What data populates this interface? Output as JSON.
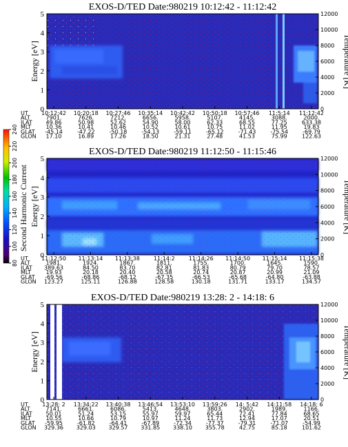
{
  "chart_data": [
    {
      "type": "heatmap",
      "title": "EXOS-D/TED   Date:980219  10:12:42 - 11:12:42",
      "ylabel": "Energy [eV]",
      "y2label": "Temperature [K]",
      "ylim": [
        0,
        5
      ],
      "y2lim": [
        0,
        12000
      ],
      "yticks": [
        "0",
        "1",
        "2",
        "3",
        "4",
        "5"
      ],
      "y2ticks": [
        "0",
        "2000",
        "4000",
        "6000",
        "8000",
        "10000",
        "12000"
      ],
      "ephemeris": {
        "rows": [
          "UT",
          "ALT",
          "ILAT",
          "MLT",
          "GLAT",
          "GLON"
        ],
        "columns": [
          [
            "10:12:42",
            "7901.",
            "49.86",
            "10.36",
            "-45.14",
            "17.10"
          ],
          [
            "10:20:18",
            "7626.",
            "50.98",
            "10.41",
            "-47.22",
            "16.89"
          ],
          [
            "10:27:46",
            "7212.",
            "52.62",
            "10.46",
            "-50.18",
            "17.26"
          ],
          [
            "10:35:14",
            "6656.",
            "54.90",
            "10.52",
            "-54.13",
            "18.50"
          ],
          [
            "10:42:42",
            "5958.",
            "58.00",
            "10.61",
            "-59.11",
            "21.31"
          ],
          [
            "10:50:18",
            "5107.",
            "62.33",
            "10.75",
            "-65.12",
            "27.48"
          ],
          [
            "10:57:46",
            "4145.",
            "68.55",
            "11.02",
            "-71.43",
            "41.53"
          ],
          [
            "11:5:14",
            "3088.",
            "77.25",
            "11.95",
            "-75.54",
            "75.99"
          ],
          [
            "11:12:42",
            "2000.",
            "633.38",
            "19.83",
            "-69.79",
            "122.63"
          ]
        ]
      }
    },
    {
      "type": "heatmap",
      "title": "EXOS-D/TED   Date:980219  11:12:50 - 11:15:46",
      "ylabel": "Energy [eV]",
      "y2label": "Temperature [K]",
      "colorbar_label": "Second Harmonic Current",
      "colorbar_ticks": [
        "80",
        "100",
        "120",
        "140",
        "160",
        "180",
        "200",
        "220",
        "240"
      ],
      "ylim": [
        0,
        5
      ],
      "y2lim": [
        0,
        12000
      ],
      "yticks": [
        "0",
        "1",
        "2",
        "3",
        "4",
        "5"
      ],
      "y2ticks": [
        "0",
        "2000",
        "4000",
        "6000",
        "8000",
        "10000",
        "12000"
      ],
      "ephemeris": {
        "rows": [
          "UT",
          "ALT",
          "ILAT",
          "MLT",
          "GLAT",
          "GLON"
        ],
        "columns": [
          [
            "11:12:50",
            "1981.",
            "389.63",
            "19.93",
            "-69.56",
            "123.27"
          ],
          [
            "11:13:14",
            "1924.",
            "84.50",
            "20.18",
            "-68.86",
            "125.11"
          ],
          [
            "11:13:38",
            "1867.",
            "83.70",
            "20.40",
            "-68.12",
            "126.88"
          ],
          [
            "11:14:2",
            "1811.",
            "82.81",
            "20.58",
            "-67.35",
            "128.58"
          ],
          [
            "11:14:26",
            "1755.",
            "81.83",
            "20.74",
            "-66.53",
            "130.18"
          ],
          [
            "11:14:50",
            "1700.",
            "80.79",
            "20.87",
            "-65.68",
            "131.71"
          ],
          [
            "11:15:14",
            "1645.",
            "79.70",
            "20.99",
            "-64.80",
            "133.17"
          ],
          [
            "11:15:38",
            "1590.",
            "78.57",
            "21.09",
            "-63.88",
            "134.57"
          ]
        ]
      }
    },
    {
      "type": "heatmap",
      "title": "EXOS-D/TED   Date:980219  13:28: 2 - 14:18: 6",
      "ylabel": "Energy [eV]",
      "y2label": "Temperature [K]",
      "ylim": [
        0,
        5
      ],
      "y2lim": [
        0,
        12000
      ],
      "yticks": [
        "0",
        "1",
        "2",
        "3",
        "4",
        "5"
      ],
      "y2ticks": [
        "0",
        "2000",
        "4000",
        "6000",
        "8000",
        "10000",
        "12000"
      ],
      "ephemeris": {
        "rows": [
          "UT",
          "ALT",
          "ILAT",
          "MLT",
          "GLAT",
          "GLON"
        ],
        "columns": [
          [
            "13:28: 2",
            "7141.",
            "50.01",
            "10.55",
            "-59.95",
            "329.36"
          ],
          [
            "13:34:22",
            "6661.",
            "51.24",
            "10.66",
            "-61.82",
            "329.03"
          ],
          [
            "13:40:38",
            "6086.",
            "53.15",
            "10.79",
            "-64.41",
            "329.57"
          ],
          [
            "13:46:54",
            "5413.",
            "55.97",
            "10.97",
            "-67.89",
            "331.85"
          ],
          [
            "13:53:10",
            "4648.",
            "59.97",
            "11.24",
            "-72.34",
            "338.10"
          ],
          [
            "13:59:26",
            "3803.",
            "65.44",
            "11.73",
            "-77.37",
            "355.78"
          ],
          [
            "14: 5:42",
            "2902.",
            "72.41",
            "12.94",
            "-79.31",
            "42.75"
          ],
          [
            "14:11:58",
            "1989.",
            "77.84",
            "17.07",
            "-71.07",
            "85.18"
          ],
          [
            "14:18: 6",
            "1166.",
            "68.65",
            "20.51",
            "-54.99",
            "101.62"
          ]
        ]
      }
    }
  ]
}
